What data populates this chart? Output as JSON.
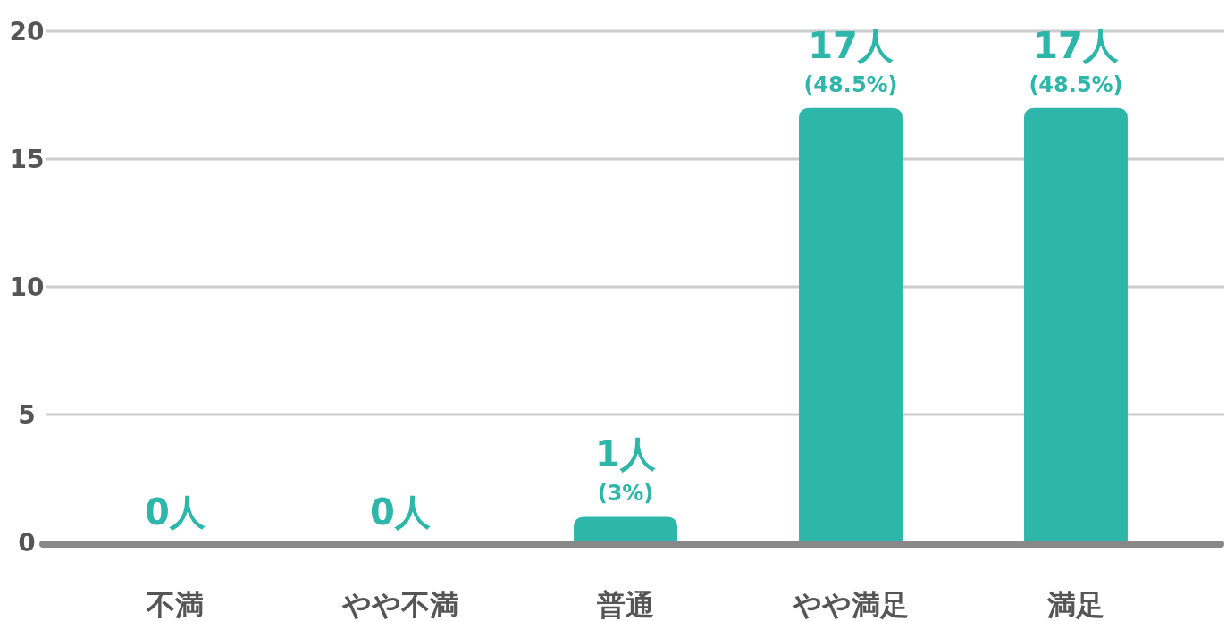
{
  "chart_data": {
    "type": "bar",
    "categories": [
      "不満",
      "やや不満",
      "普通",
      "やや満足",
      "満足"
    ],
    "values": [
      0,
      0,
      1,
      17,
      17
    ],
    "color": "#2eb6aa",
    "value_labels": [
      "0人",
      "0人",
      "1人 (3%)",
      "17人 (48.5%)",
      "17人 (48.5%)"
    ],
    "ylim": [
      0,
      20
    ],
    "yticks": [
      0,
      5,
      10,
      15,
      20
    ],
    "grid": "y"
  }
}
